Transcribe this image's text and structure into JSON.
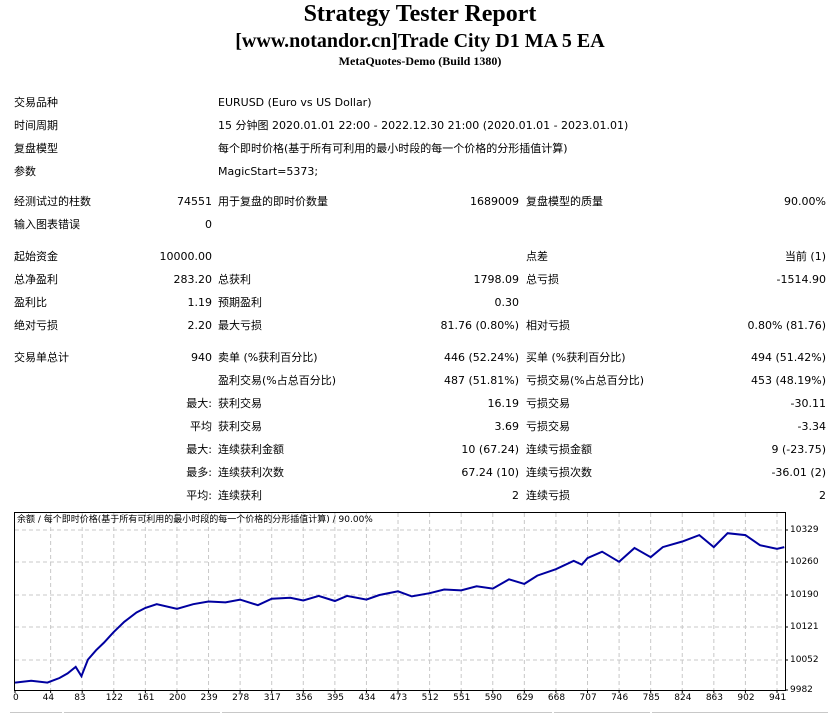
{
  "header": {
    "title": "Strategy Tester Report",
    "subtitle": "[www.notandor.cn]Trade City D1 MA 5 EA",
    "server": "MetaQuotes-Demo (Build 1380)"
  },
  "info": {
    "symbol_label": "交易品种",
    "symbol_value": "EURUSD (Euro vs US Dollar)",
    "period_label": "时间周期",
    "period_value": "15 分钟图 2020.01.01 22:00 - 2022.12.30 21:00 (2020.01.01 - 2023.01.01)",
    "model_label": "复盘模型",
    "model_value": "每个即时价格(基于所有可利用的最小时段的每一个价格的分形插值计算)",
    "params_label": "参数",
    "params_value": "MagicStart=5373;"
  },
  "stats": {
    "bars_label": "经测试过的柱数",
    "bars_value": "74551",
    "ticks_label": "用于复盘的即时价数量",
    "ticks_value": "1689009",
    "quality_label": "复盘模型的质量",
    "quality_value": "90.00%",
    "errors_label": "输入图表错误",
    "errors_value": "0",
    "deposit_label": "起始资金",
    "deposit_value": "10000.00",
    "spread_label": "点差",
    "spread_value": "当前 (1)",
    "net_profit_label": "总净盈利",
    "net_profit_value": "283.20",
    "gross_profit_label": "总获利",
    "gross_profit_value": "1798.09",
    "gross_loss_label": "总亏损",
    "gross_loss_value": "-1514.90",
    "profit_factor_label": "盈利比",
    "profit_factor_value": "1.19",
    "expected_payoff_label": "预期盈利",
    "expected_payoff_value": "0.30",
    "abs_dd_label": "绝对亏损",
    "abs_dd_value": "2.20",
    "max_dd_label": "最大亏损",
    "max_dd_value": "81.76 (0.80%)",
    "rel_dd_label": "相对亏损",
    "rel_dd_value": "0.80% (81.76)",
    "total_trades_label": "交易单总计",
    "total_trades_value": "940",
    "short_label": "卖单 (%获利百分比)",
    "short_value": "446 (52.24%)",
    "long_label": "买单 (%获利百分比)",
    "long_value": "494 (51.42%)",
    "profit_trades_label": "盈利交易(%占总百分比)",
    "profit_trades_value": "487 (51.81%)",
    "loss_trades_label": "亏损交易(%占总百分比)",
    "loss_trades_value": "453 (48.19%)",
    "largest_prefix": "最大:",
    "largest_profit_label": "获利交易",
    "largest_profit_value": "16.19",
    "largest_loss_label": "亏损交易",
    "largest_loss_value": "-30.11",
    "average_prefix": "平均",
    "average_profit_label": "获利交易",
    "average_profit_value": "3.69",
    "average_loss_label": "亏损交易",
    "average_loss_value": "-3.34",
    "max_cons_prefix": "最大:",
    "max_cons_wins_label": "连续获利金额",
    "max_cons_wins_value": "10 (67.24)",
    "max_cons_losses_label": "连续亏损金额",
    "max_cons_losses_value": "9 (-23.75)",
    "most_cons_prefix": "最多:",
    "most_cons_profit_label": "连续获利次数",
    "most_cons_profit_value": "67.24 (10)",
    "most_cons_loss_label": "连续亏损次数",
    "most_cons_loss_value": "-36.01 (2)",
    "avg_cons_prefix": "平均:",
    "avg_cons_wins_label": "连续获利",
    "avg_cons_wins_value": "2",
    "avg_cons_losses_label": "连续亏损",
    "avg_cons_losses_value": "2"
  },
  "chart": {
    "title": "余额 / 每个即时价格(基于所有可利用的最小时段的每一个价格的分形插值计算) / 90.00%",
    "line_color": "#0000a0",
    "grid_color": "#c8c8c8",
    "y_ticks": [
      "10329",
      "10260",
      "10190",
      "10121",
      "10052",
      "9982"
    ],
    "x_ticks": [
      "0",
      "44",
      "83",
      "122",
      "161",
      "200",
      "239",
      "278",
      "317",
      "356",
      "395",
      "434",
      "473",
      "512",
      "551",
      "590",
      "629",
      "668",
      "707",
      "746",
      "785",
      "824",
      "863",
      "902",
      "941"
    ]
  },
  "chart_data": {
    "type": "line",
    "title": "余额 / 每个即时价格(基于所有可利用的最小时段的每一个价格的分形插值计算) / 90.00%",
    "xlabel": "",
    "ylabel": "",
    "ylim": [
      9982,
      10345
    ],
    "xlim": [
      0,
      950
    ],
    "grid": true,
    "legend": "none",
    "series": [
      {
        "name": "余额",
        "x": [
          0,
          20,
          40,
          55,
          65,
          75,
          82,
          90,
          100,
          110,
          122,
          135,
          150,
          161,
          175,
          200,
          220,
          239,
          260,
          278,
          300,
          317,
          340,
          356,
          375,
          395,
          410,
          434,
          450,
          473,
          490,
          512,
          530,
          551,
          570,
          590,
          610,
          629,
          645,
          668,
          690,
          700,
          707,
          725,
          746,
          765,
          785,
          800,
          824,
          845,
          863,
          880,
          902,
          920,
          941,
          950
        ],
        "values": [
          9998,
          10002,
          9998,
          10008,
          10018,
          10032,
          10012,
          10048,
          10068,
          10085,
          10108,
          10130,
          10150,
          10160,
          10168,
          10158,
          10168,
          10174,
          10172,
          10178,
          10166,
          10180,
          10182,
          10176,
          10186,
          10175,
          10186,
          10178,
          10188,
          10196,
          10185,
          10192,
          10200,
          10198,
          10207,
          10202,
          10222,
          10212,
          10230,
          10244,
          10262,
          10254,
          10268,
          10282,
          10260,
          10290,
          10270,
          10292,
          10304,
          10318,
          10292,
          10322,
          10318,
          10296,
          10288,
          10292
        ]
      }
    ],
    "y_tick_labels": [
      "10329",
      "10260",
      "10190",
      "10121",
      "10052",
      "9982"
    ],
    "x_tick_labels": [
      "0",
      "44",
      "83",
      "122",
      "161",
      "200",
      "239",
      "278",
      "317",
      "356",
      "395",
      "434",
      "473",
      "512",
      "551",
      "590",
      "629",
      "668",
      "707",
      "746",
      "785",
      "824",
      "863",
      "902",
      "941"
    ]
  }
}
